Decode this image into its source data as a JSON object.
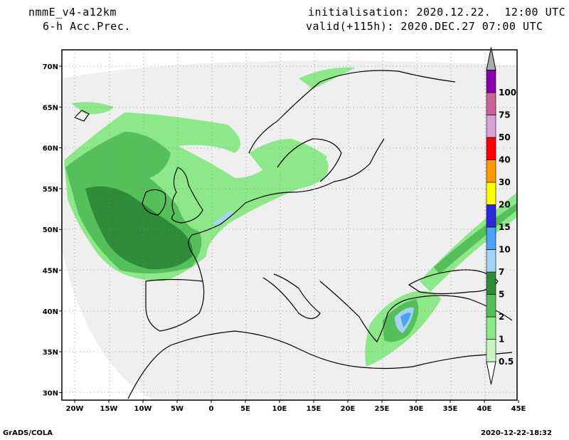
{
  "header": {
    "model": "nmmE_v4-a12km",
    "field": "6-h Acc.Prec.",
    "init": "initialisation: 2020.12.22.  12:00 UTC",
    "valid": "valid(+115h): 2020.DEC.27 07:00 UTC"
  },
  "footer": {
    "left": "GrADS/COLA",
    "right": "2020-12-22-18:32"
  },
  "axes": {
    "lon_labels": [
      "20W",
      "15W",
      "10W",
      "5W",
      "0",
      "5E",
      "10E",
      "15E",
      "20E",
      "25E",
      "30E",
      "35E",
      "40E",
      "45E"
    ],
    "lat_labels": [
      "70N",
      "65N",
      "60N",
      "55N",
      "50N",
      "45N",
      "40N",
      "35N",
      "30N"
    ]
  },
  "colorbar": {
    "levels": [
      {
        "label": "0.5",
        "color": "#c8f5c0"
      },
      {
        "label": "1",
        "color": "#8de88a"
      },
      {
        "label": "2",
        "color": "#55c05a"
      },
      {
        "label": "5",
        "color": "#2e8b3a"
      },
      {
        "label": "7",
        "color": "#a6d3f5"
      },
      {
        "label": "10",
        "color": "#4da3f0"
      },
      {
        "label": "15",
        "color": "#2a2ad6"
      },
      {
        "label": "20",
        "color": "#ffff00"
      },
      {
        "label": "30",
        "color": "#ff9900"
      },
      {
        "label": "40",
        "color": "#ff0000"
      },
      {
        "label": "50",
        "color": "#d8a2d8"
      },
      {
        "label": "75",
        "color": "#c86496"
      },
      {
        "label": "100",
        "color": "#8800aa"
      }
    ],
    "top_arrow_color": "#aaaaaa"
  },
  "colors": {
    "domain_fill": "#efefef",
    "light_green": "#8de88a",
    "mid_green": "#55c05a",
    "dark_green": "#2e8b3a",
    "light_blue": "#a6d3f5",
    "blue": "#4da3f0",
    "coast": "#000000"
  }
}
